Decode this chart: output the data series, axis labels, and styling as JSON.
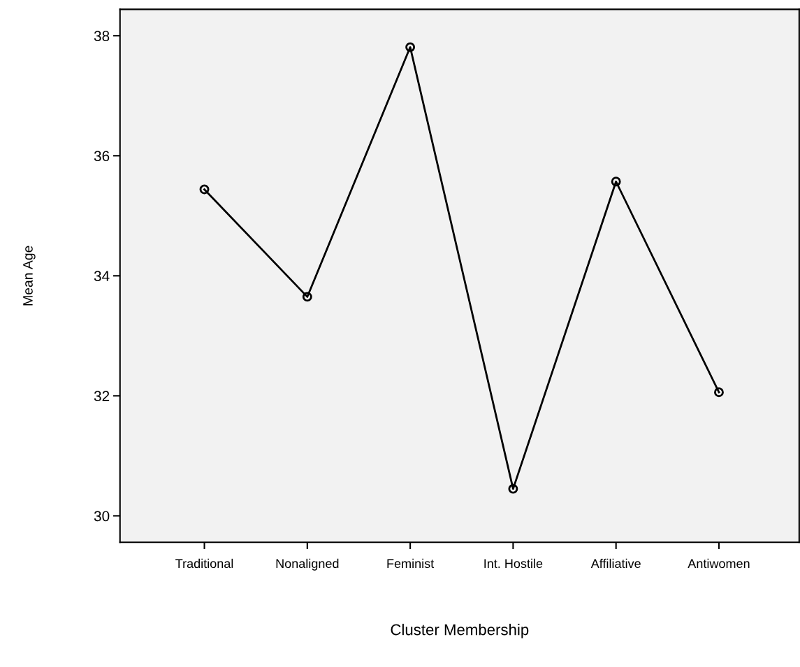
{
  "chart_data": {
    "type": "line",
    "xlabel": "Cluster Membership",
    "ylabel": "Mean Age",
    "categories": [
      "Traditional",
      "Nonaligned",
      "Feminist",
      "Int. Hostile",
      "Affiliative",
      "Antiwomen"
    ],
    "series": [
      {
        "color": "#000000",
        "values": [
          35.44,
          33.65,
          37.81,
          30.45,
          35.57,
          32.06
        ]
      }
    ],
    "ylim": [
      29.56,
      38.44
    ],
    "yticks": [
      30,
      32,
      34,
      36,
      38
    ],
    "marker": "circle",
    "line_style": "solid",
    "grid": false,
    "legend": false
  }
}
